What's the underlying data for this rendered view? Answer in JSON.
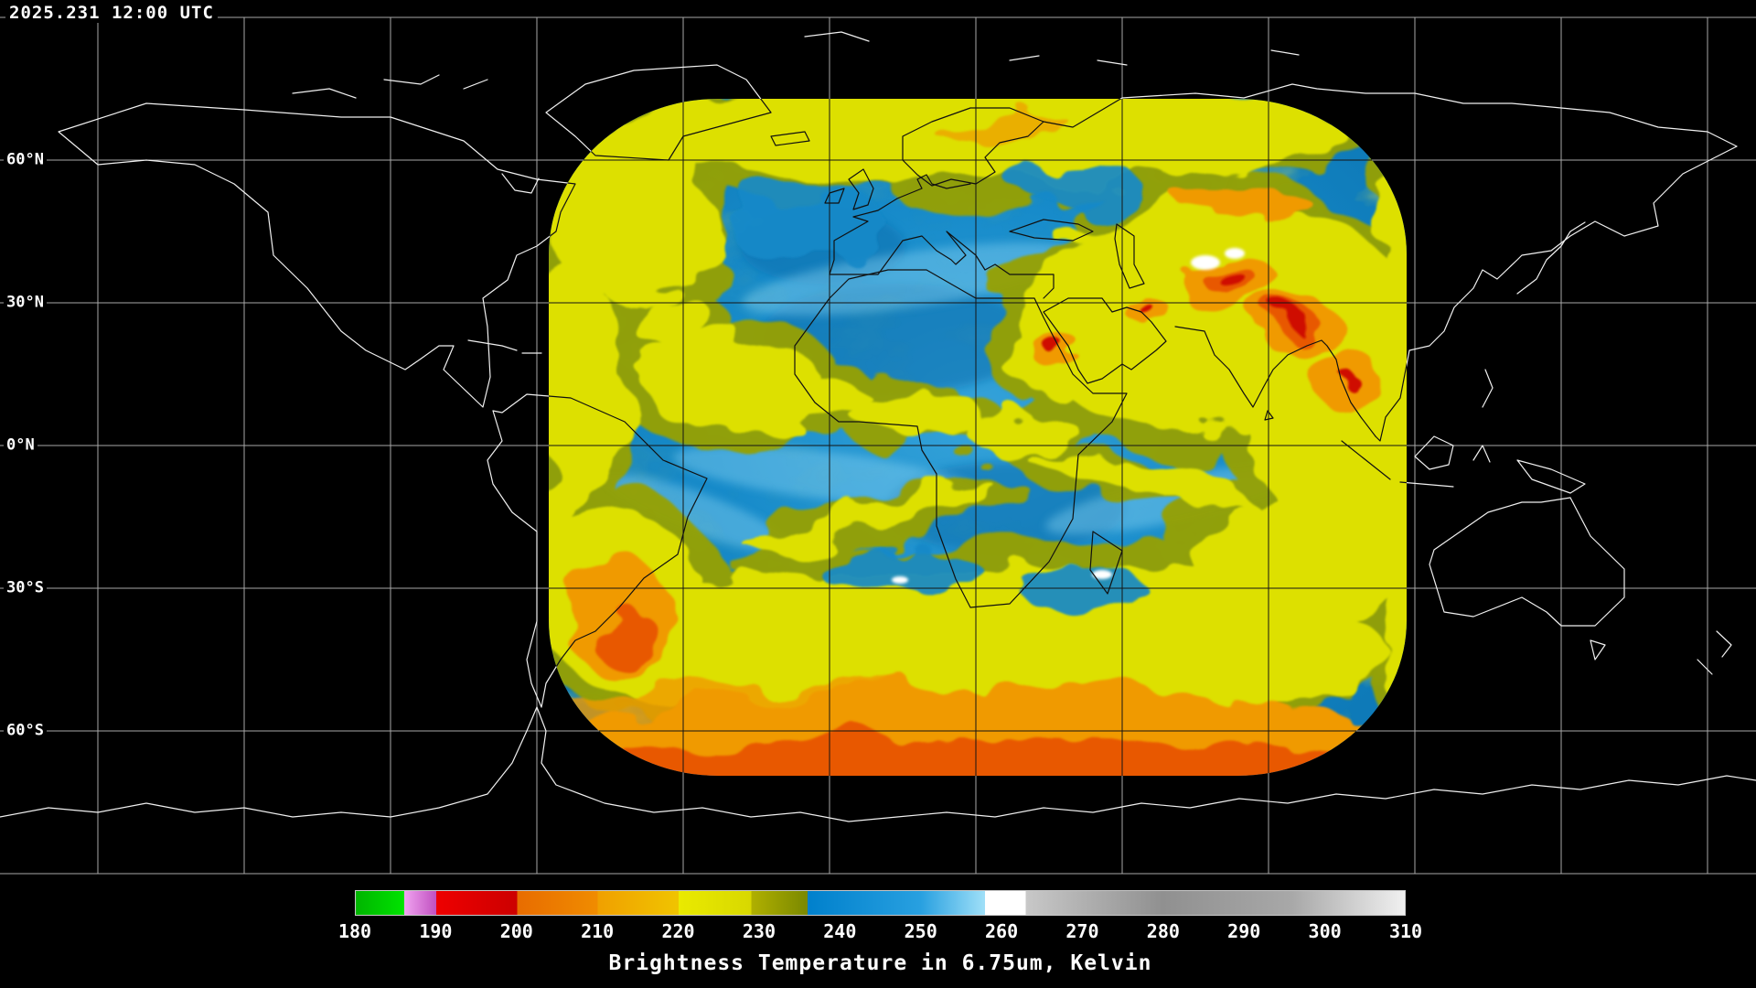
{
  "header": {
    "timestamp": "2025.231 12:00 UTC"
  },
  "map": {
    "latitude_labels": [
      "60°N",
      "30°N",
      "0°N",
      "30°S",
      "60°S"
    ]
  },
  "colorbar": {
    "title": "Brightness Temperature in 6.75um, Kelvin",
    "scale_min": 180,
    "scale_max": 310,
    "tick_labels": [
      "180",
      "190",
      "200",
      "210",
      "220",
      "230",
      "240",
      "250",
      "260",
      "270",
      "280",
      "290",
      "300",
      "310"
    ],
    "stops": [
      {
        "value": 180,
        "color": "#00b400"
      },
      {
        "value": 186,
        "color": "#00e400"
      },
      {
        "value": 186,
        "color": "#f0a4f0"
      },
      {
        "value": 190,
        "color": "#c050c0"
      },
      {
        "value": 190,
        "color": "#ee0000"
      },
      {
        "value": 200,
        "color": "#cc0000"
      },
      {
        "value": 200,
        "color": "#e86c00"
      },
      {
        "value": 210,
        "color": "#f08c00"
      },
      {
        "value": 210,
        "color": "#f0a000"
      },
      {
        "value": 220,
        "color": "#f0c400"
      },
      {
        "value": 220,
        "color": "#eaea00"
      },
      {
        "value": 229,
        "color": "#d8d800"
      },
      {
        "value": 229,
        "color": "#b0b000"
      },
      {
        "value": 236,
        "color": "#7a8800"
      },
      {
        "value": 236,
        "color": "#0080cc"
      },
      {
        "value": 250,
        "color": "#28a0e0"
      },
      {
        "value": 258,
        "color": "#a0e0f8"
      },
      {
        "value": 258,
        "color": "#ffffff"
      },
      {
        "value": 263,
        "color": "#ffffff"
      },
      {
        "value": 263,
        "color": "#c8c8c8"
      },
      {
        "value": 280,
        "color": "#909090"
      },
      {
        "value": 296,
        "color": "#a8a8a8"
      },
      {
        "value": 310,
        "color": "#f0f0f0"
      }
    ],
    "imagery_colors": {
      "moist_cold_yellow": "#dde002",
      "dry_warm_blue": "#178bca",
      "very_cold_orange": "#f09a00",
      "coldest_red": "#cf0f00",
      "warmest_white": "#ffffff"
    }
  }
}
